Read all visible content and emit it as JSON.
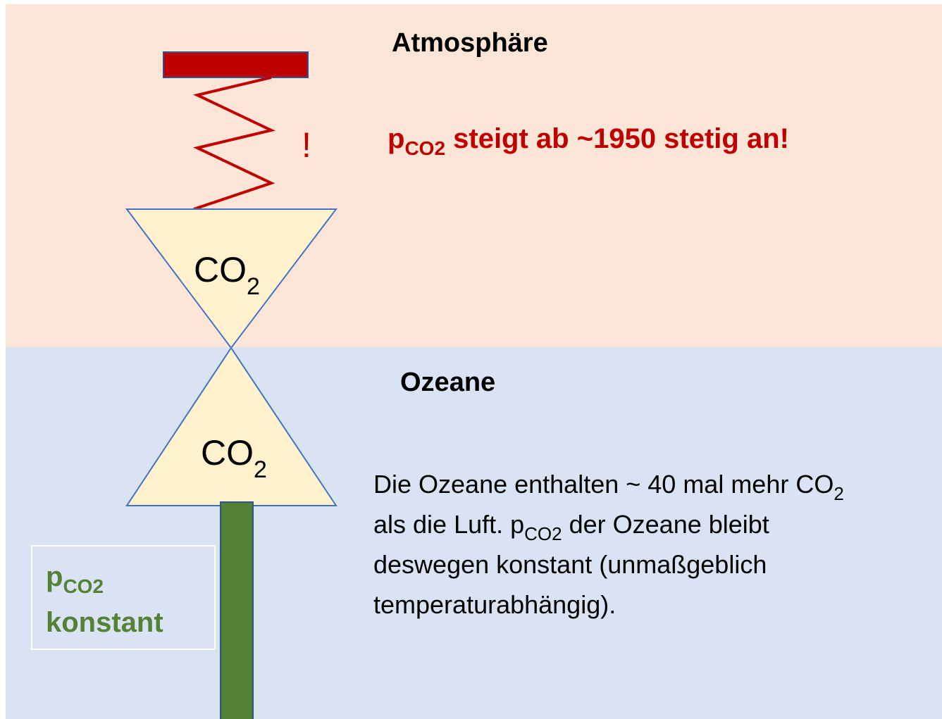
{
  "atmosphere": {
    "title": "Atmosphäre",
    "exclamation": "!",
    "molecule": {
      "symbol": "CO",
      "subscript": "2"
    },
    "statement": {
      "symbol": "p",
      "subscript": "CO2",
      "text": " steigt ab ~1950 stetig an!"
    }
  },
  "ocean": {
    "title": "Ozeane",
    "molecule": {
      "symbol": "CO",
      "subscript": "2"
    },
    "label": {
      "symbol": "p",
      "subscript": "CO2",
      "text": "konstant"
    },
    "description": {
      "lines": [
        [
          "Die Ozeane enthalten ~ 40 mal mehr CO",
          "2"
        ],
        [
          "als die Luft. p",
          "CO2",
          " der Ozeane bleibt"
        ],
        [
          "deswegen konstant (unmaßgeblich"
        ],
        [
          "temperaturabhängig)."
        ]
      ]
    }
  }
}
